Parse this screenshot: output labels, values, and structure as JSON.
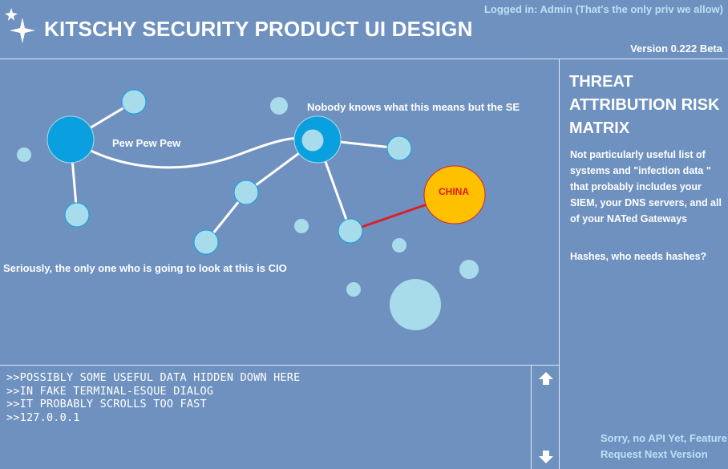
{
  "header": {
    "title": "KITSCHY  SECURITY PRODUCT UI DESIGN",
    "login_status": "Logged in: Admin (That's the only priv we allow)",
    "version": "Version 0.222 Beta",
    "logo_icon": "sparkle-stars-icon"
  },
  "graph": {
    "label_pew": "Pew Pew Pew",
    "label_se": "Nobody knows what this means but the SE",
    "label_cio": "Seriously, the only one who is going to look at this is CIO",
    "china_label": "CHINA",
    "colors": {
      "node_large": "#0aa0e0",
      "node_small": "#a8dcea",
      "edge": "#ffffff",
      "threat_edge": "#d8202a",
      "china_fill": "#ffc000",
      "china_text": "#e01818"
    }
  },
  "panel": {
    "title": "THREAT ATTRIBUTION RISK MATRIX",
    "description": "Not particularly useful list of systems and \"infection data \" that probably includes your SIEM, your DNS servers, and all of your NATed Gateways",
    "hashes": "Hashes, who needs hashes?",
    "api_link": "Sorry, no API Yet, Feature Request Next Version"
  },
  "terminal": {
    "lines": [
      ">>POSSIBLY SOME USEFUL DATA HIDDEN DOWN HERE",
      ">>IN FAKE TERMINAL-ESQUE DIALOG",
      ">>IT PROBABLY SCROLLS TOO FAST",
      ">>127.0.0.1"
    ],
    "scroll_up_icon": "arrow-up-icon",
    "scroll_down_icon": "arrow-down-icon"
  }
}
